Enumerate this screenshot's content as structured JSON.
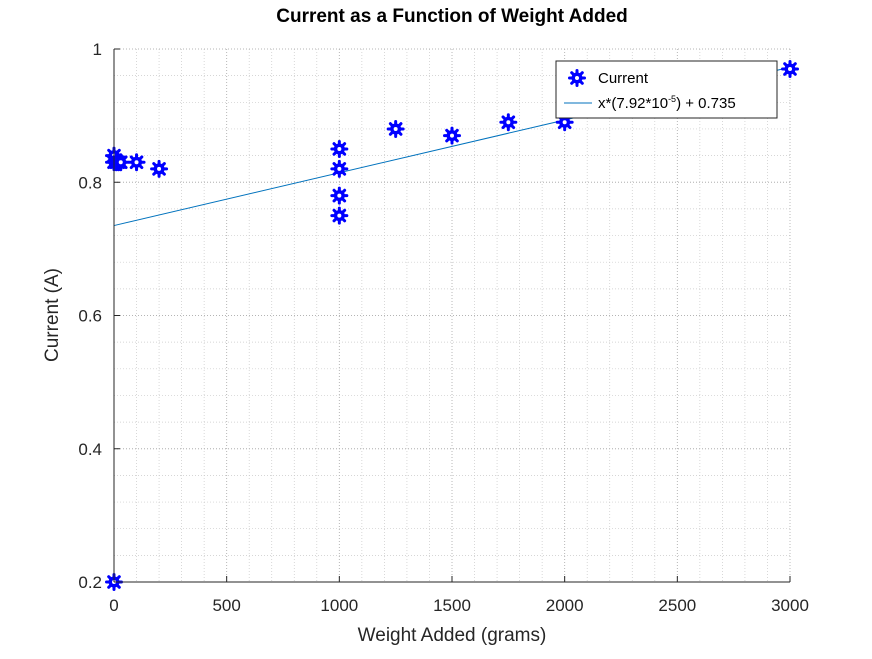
{
  "chart_data": {
    "type": "scatter",
    "title": "Current as a Function of Weight Added",
    "xlabel": "Weight Added (grams)",
    "ylabel": "Current (A)",
    "xlim": [
      0,
      3000
    ],
    "ylim": [
      0.2,
      1
    ],
    "xticks": [
      0,
      500,
      1000,
      1500,
      2000,
      2500,
      3000
    ],
    "xtick_labels": [
      "0",
      "500",
      "1000",
      "1500",
      "2000",
      "2500",
      "3000"
    ],
    "yticks": [
      0.2,
      0.4,
      0.6,
      0.8,
      1
    ],
    "ytick_labels": [
      "0.2",
      "0.4",
      "0.6",
      "0.8",
      "1"
    ],
    "grid": true,
    "minor_grid": true,
    "legend_position": "top-right",
    "series": [
      {
        "name": "Current",
        "kind": "markers",
        "color": "#0000ff",
        "x": [
          0,
          0,
          0,
          10,
          20,
          30,
          100,
          200,
          1000,
          1000,
          1000,
          1000,
          1250,
          1500,
          1750,
          2000,
          3000
        ],
        "y": [
          0.2,
          0.83,
          0.84,
          0.83,
          0.83,
          0.83,
          0.83,
          0.82,
          0.85,
          0.82,
          0.78,
          0.75,
          0.88,
          0.87,
          0.89,
          0.89,
          0.97
        ]
      },
      {
        "name_parts": [
          "x*(7.92*10",
          "-5",
          ") + 0.735"
        ],
        "kind": "line",
        "color": "#0072bd",
        "slope": 7.92e-05,
        "intercept": 0.735,
        "x": [
          0,
          3000
        ]
      }
    ]
  }
}
